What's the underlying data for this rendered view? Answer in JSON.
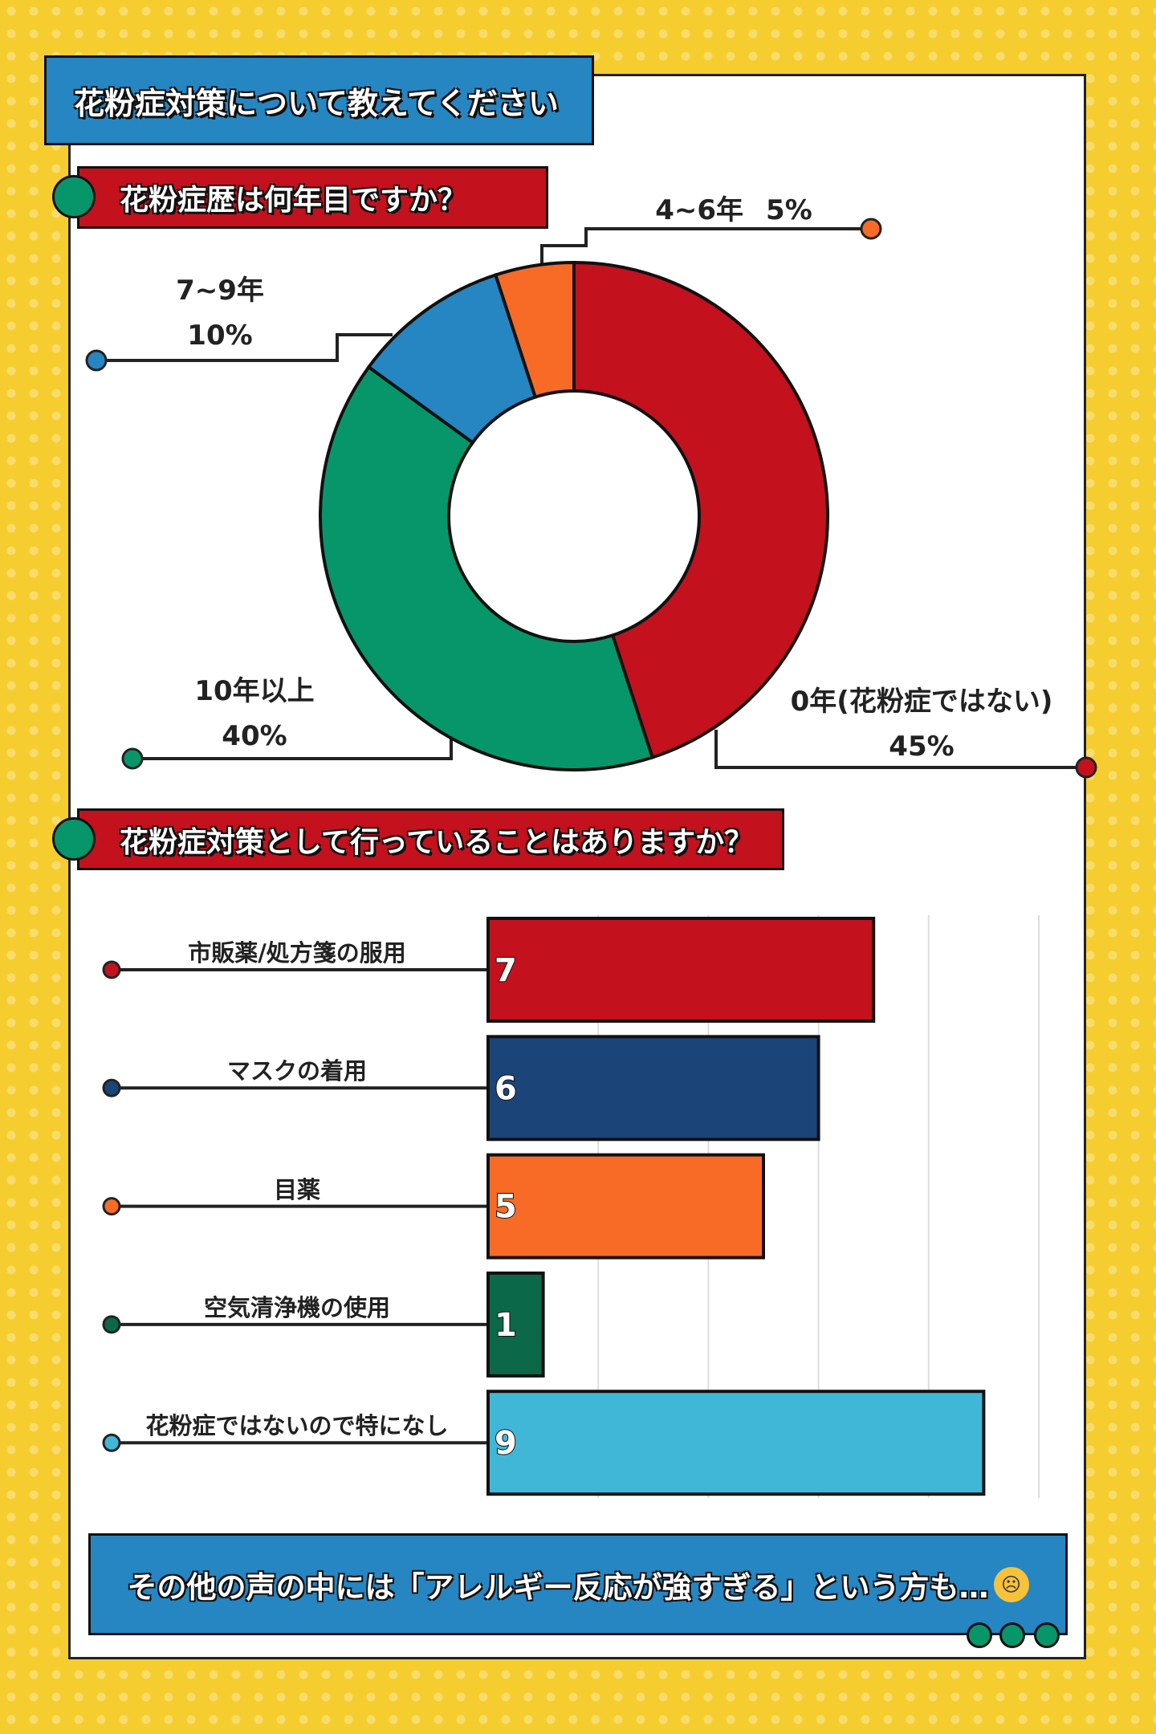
{
  "title": "花粉症対策について教えてください",
  "colors": {
    "red": "#c3111e",
    "green": "#07966a",
    "blue": "#2586c2",
    "orange": "#f76b27",
    "navy": "#1b4579",
    "darkgreen": "#0b6848",
    "lightblue": "#41b7d7",
    "yellow": "#f5cd2e"
  },
  "chart_data": [
    {
      "type": "pie",
      "title": "花粉症歴は何年目ですか？",
      "slices": [
        {
          "label": "0年(花粉症ではない)",
          "value": 45,
          "pct": "45%",
          "color": "#c3111e"
        },
        {
          "label": "10年以上",
          "value": 40,
          "pct": "40%",
          "color": "#07966a"
        },
        {
          "label": "7~9年",
          "value": 10,
          "pct": "10%",
          "color": "#2586c2"
        },
        {
          "label": "4~6年",
          "value": 5,
          "pct": "5%",
          "color": "#f76b27"
        }
      ]
    },
    {
      "type": "bar",
      "orientation": "horizontal",
      "title": "花粉症対策として行っていることはありますか？",
      "categories": [
        "市販薬/処方箋の服用",
        "マスクの着用",
        "目薬",
        "空気清浄機の使用",
        "花粉症ではないので特になし"
      ],
      "values": [
        7,
        6,
        5,
        1,
        9
      ],
      "colors": [
        "#c3111e",
        "#1b4579",
        "#f76b27",
        "#0b6848",
        "#41b7d7"
      ],
      "xlim": [
        0,
        10
      ],
      "grid": true
    }
  ],
  "footer": {
    "text": "その他の声の中には「アレルギー反応が強すぎる」という方も…",
    "emoji": "crying-face"
  }
}
